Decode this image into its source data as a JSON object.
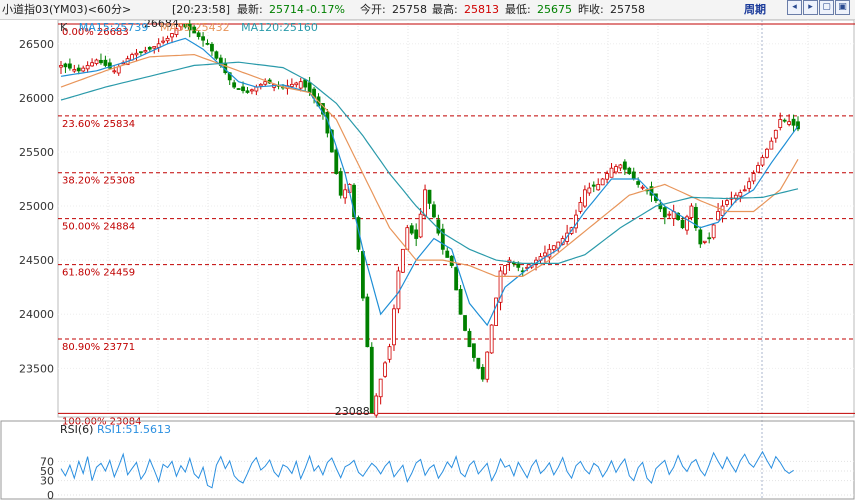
{
  "header": {
    "title": "小道指03(YM03)<60分>",
    "time": "[20:23:58]",
    "last_label": "最新:",
    "last_value": "25714",
    "change": "-0.17%",
    "open_label": "今开:",
    "open_value": "25758",
    "high_label": "最高:",
    "high_value": "25813",
    "low_label": "最低:",
    "low_value": "25675",
    "prev_label": "昨收:",
    "prev_value": "25758",
    "period_button": "周期",
    "nav_icons": [
      "arrow-left-icon",
      "arrow-right-icon",
      "zoom-in-icon",
      "zoom-out-icon"
    ]
  },
  "legend": {
    "k": "K",
    "ma15": "MA15:25739",
    "ma55": "MA55:25432",
    "ma120": "MA120:25160"
  },
  "rsi_legend": {
    "title": "RSI(6)",
    "value": "RSI1:51.5613"
  },
  "colors": {
    "up": "#d00000",
    "down": "#008000",
    "ma15": "#1f8fd6",
    "ma55": "#e8955a",
    "ma120": "#2a9aaa",
    "fib": "#c00000",
    "rsi": "#2a8fe0"
  },
  "chart_data": [
    {
      "type": "candlestick",
      "ylim": [
        23050,
        26720
      ],
      "yticks": [
        23500,
        24000,
        24500,
        25000,
        25500,
        26000,
        26500
      ],
      "fib_levels": [
        {
          "label": "0.00% 26683",
          "value": 26683
        },
        {
          "label": "23.60% 25834",
          "value": 25834
        },
        {
          "label": "38.20% 25308",
          "value": 25308
        },
        {
          "label": "50.00% 24884",
          "value": 24884
        },
        {
          "label": "61.80% 24459",
          "value": 24459
        },
        {
          "label": "80.90% 23771",
          "value": 23771
        },
        {
          "label": "100.00% 23084",
          "value": 23084
        }
      ],
      "annotations": [
        {
          "text": "26684",
          "x": 27,
          "y": 26684,
          "anchor": "end"
        },
        {
          "text": "23088",
          "x": 70,
          "y": 23088,
          "anchor": "end"
        }
      ],
      "price_path": [
        [
          0,
          26300
        ],
        [
          4,
          26250
        ],
        [
          8,
          26350
        ],
        [
          12,
          26250
        ],
        [
          16,
          26400
        ],
        [
          20,
          26450
        ],
        [
          24,
          26550
        ],
        [
          27,
          26684
        ],
        [
          30,
          26600
        ],
        [
          33,
          26500
        ],
        [
          36,
          26300
        ],
        [
          39,
          26100
        ],
        [
          42,
          26050
        ],
        [
          46,
          26150
        ],
        [
          50,
          26100
        ],
        [
          54,
          26150
        ],
        [
          57,
          26000
        ],
        [
          59,
          25850
        ],
        [
          61,
          25500
        ],
        [
          63,
          25100
        ],
        [
          65,
          25200
        ],
        [
          67,
          24600
        ],
        [
          69,
          23700
        ],
        [
          70,
          23088
        ],
        [
          72,
          23400
        ],
        [
          74,
          23700
        ],
        [
          76,
          24400
        ],
        [
          78,
          24800
        ],
        [
          80,
          24700
        ],
        [
          82,
          25150
        ],
        [
          84,
          24900
        ],
        [
          86,
          24600
        ],
        [
          88,
          24450
        ],
        [
          90,
          24000
        ],
        [
          92,
          23700
        ],
        [
          94,
          23500
        ],
        [
          95,
          23400
        ],
        [
          97,
          23900
        ],
        [
          99,
          24400
        ],
        [
          101,
          24500
        ],
        [
          104,
          24400
        ],
        [
          107,
          24500
        ],
        [
          110,
          24600
        ],
        [
          113,
          24700
        ],
        [
          115,
          24800
        ],
        [
          118,
          25150
        ],
        [
          121,
          25200
        ],
        [
          124,
          25350
        ],
        [
          126,
          25380
        ],
        [
          128,
          25300
        ],
        [
          130,
          25200
        ],
        [
          132,
          25150
        ],
        [
          134,
          25050
        ],
        [
          136,
          24900
        ],
        [
          138,
          24950
        ],
        [
          140,
          24800
        ],
        [
          142,
          25000
        ],
        [
          143,
          24800
        ],
        [
          144,
          24650
        ],
        [
          146,
          24700
        ],
        [
          148,
          24950
        ],
        [
          150,
          25050
        ],
        [
          152,
          25100
        ],
        [
          154,
          25150
        ],
        [
          156,
          25300
        ],
        [
          158,
          25450
        ],
        [
          160,
          25600
        ],
        [
          162,
          25800
        ],
        [
          164,
          25780
        ],
        [
          166,
          25714
        ]
      ],
      "ma15_path": [
        [
          0,
          26200
        ],
        [
          8,
          26250
        ],
        [
          16,
          26350
        ],
        [
          24,
          26500
        ],
        [
          28,
          26550
        ],
        [
          32,
          26450
        ],
        [
          36,
          26300
        ],
        [
          40,
          26150
        ],
        [
          44,
          26100
        ],
        [
          50,
          26120
        ],
        [
          56,
          26050
        ],
        [
          60,
          25800
        ],
        [
          64,
          25300
        ],
        [
          68,
          24600
        ],
        [
          72,
          24000
        ],
        [
          76,
          24200
        ],
        [
          80,
          24500
        ],
        [
          84,
          24700
        ],
        [
          88,
          24600
        ],
        [
          92,
          24100
        ],
        [
          96,
          23900
        ],
        [
          100,
          24250
        ],
        [
          106,
          24450
        ],
        [
          112,
          24600
        ],
        [
          118,
          24950
        ],
        [
          124,
          25250
        ],
        [
          130,
          25250
        ],
        [
          136,
          25000
        ],
        [
          140,
          24900
        ],
        [
          144,
          24800
        ],
        [
          148,
          24850
        ],
        [
          152,
          25050
        ],
        [
          156,
          25150
        ],
        [
          160,
          25400
        ],
        [
          166,
          25739
        ]
      ],
      "ma55_path": [
        [
          0,
          26100
        ],
        [
          10,
          26250
        ],
        [
          20,
          26380
        ],
        [
          30,
          26400
        ],
        [
          40,
          26250
        ],
        [
          50,
          26100
        ],
        [
          56,
          26050
        ],
        [
          62,
          25800
        ],
        [
          68,
          25300
        ],
        [
          74,
          24800
        ],
        [
          80,
          24500
        ],
        [
          86,
          24500
        ],
        [
          92,
          24450
        ],
        [
          98,
          24350
        ],
        [
          104,
          24350
        ],
        [
          110,
          24500
        ],
        [
          116,
          24700
        ],
        [
          122,
          24900
        ],
        [
          128,
          25100
        ],
        [
          136,
          25200
        ],
        [
          144,
          25050
        ],
        [
          150,
          24950
        ],
        [
          156,
          24950
        ],
        [
          162,
          25150
        ],
        [
          166,
          25432
        ]
      ],
      "ma120_path": [
        [
          0,
          25980
        ],
        [
          10,
          26100
        ],
        [
          20,
          26200
        ],
        [
          30,
          26300
        ],
        [
          40,
          26330
        ],
        [
          50,
          26280
        ],
        [
          56,
          26150
        ],
        [
          62,
          25950
        ],
        [
          68,
          25650
        ],
        [
          74,
          25300
        ],
        [
          80,
          25000
        ],
        [
          86,
          24750
        ],
        [
          92,
          24600
        ],
        [
          98,
          24500
        ],
        [
          104,
          24470
        ],
        [
          112,
          24470
        ],
        [
          118,
          24550
        ],
        [
          126,
          24800
        ],
        [
          134,
          25000
        ],
        [
          142,
          25080
        ],
        [
          150,
          25070
        ],
        [
          158,
          25080
        ],
        [
          166,
          25160
        ]
      ]
    },
    {
      "type": "line",
      "name": "RSI1",
      "ylim": [
        0,
        100
      ],
      "yticks": [
        0,
        30,
        50,
        70
      ],
      "values": [
        55,
        40,
        62,
        35,
        70,
        45,
        80,
        30,
        58,
        66,
        50,
        72,
        38,
        60,
        85,
        42,
        55,
        68,
        33,
        47,
        74,
        52,
        28,
        64,
        57,
        70,
        39,
        61,
        48,
        76,
        44,
        35,
        58,
        20,
        15,
        62,
        80,
        55,
        71,
        40,
        30,
        25,
        45,
        66,
        78,
        52,
        60,
        73,
        48,
        38,
        63,
        58,
        45,
        70,
        34,
        56,
        81,
        50,
        61,
        42,
        68,
        77,
        55,
        36,
        59,
        64,
        72,
        47,
        39,
        53,
        66,
        58,
        44,
        60,
        70,
        38,
        50,
        62,
        28,
        45,
        67,
        74,
        41,
        56,
        63,
        35,
        49,
        69,
        57,
        80,
        46,
        38,
        62,
        71,
        44,
        55,
        66,
        30,
        48,
        75,
        58,
        62,
        40,
        68,
        52,
        36,
        60,
        73,
        45,
        54,
        67,
        42,
        58,
        78,
        49,
        35,
        61,
        70,
        53,
        44,
        66,
        59,
        38,
        52,
        71,
        47,
        63,
        75,
        40,
        30,
        57,
        68,
        35,
        25,
        55,
        64,
        72,
        43,
        58,
        82,
        60,
        49,
        67,
        74,
        52,
        40,
        63,
        88,
        70,
        55,
        79,
        62,
        48,
        71,
        85,
        66,
        58,
        74,
        90,
        72,
        56,
        80,
        68,
        52,
        45,
        51.56
      ]
    }
  ]
}
